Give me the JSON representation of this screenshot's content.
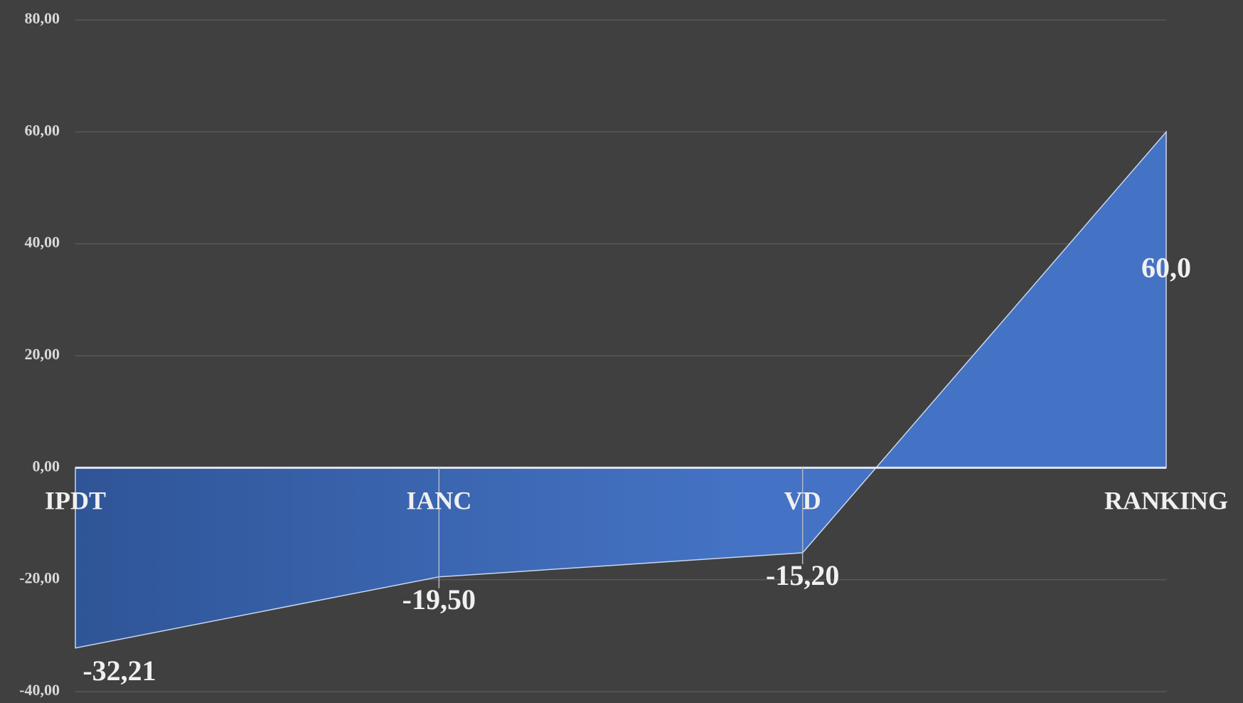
{
  "chart_data": {
    "type": "area",
    "categories": [
      "IPDT",
      "IANC",
      "VD",
      "RANKING"
    ],
    "values": [
      -32.21,
      -19.5,
      -15.2,
      60.0
    ],
    "value_labels": [
      "-32,21",
      "-19,50",
      "-15,20",
      "60,0"
    ],
    "color": "#4472c4",
    "ylim": [
      -40,
      80
    ],
    "yticks": [
      {
        "value": -40,
        "label": "-40,00"
      },
      {
        "value": -20,
        "label": "-20,00"
      },
      {
        "value": 0,
        "label": "0,00"
      },
      {
        "value": 20,
        "label": "20,00"
      },
      {
        "value": 40,
        "label": "40,00"
      },
      {
        "value": 60,
        "label": "60,00"
      },
      {
        "value": 80,
        "label": "80,00"
      }
    ],
    "grid": true
  }
}
